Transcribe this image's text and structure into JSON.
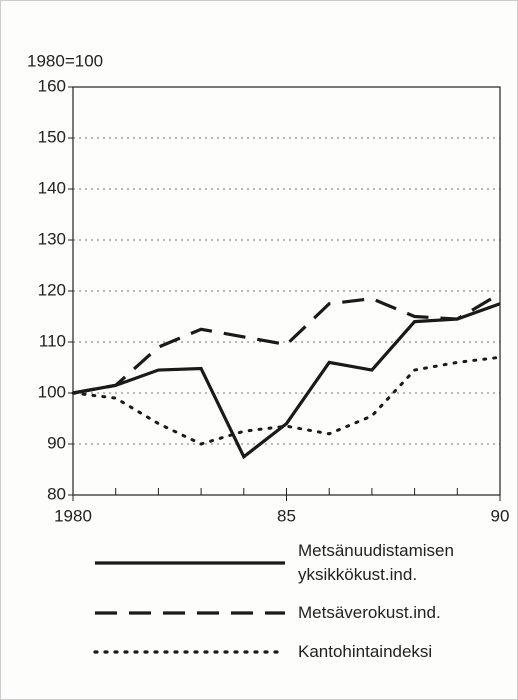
{
  "chart_data": {
    "type": "line",
    "y_label": "1980=100",
    "x": [
      1980,
      1981,
      1982,
      1983,
      1984,
      1985,
      1986,
      1987,
      1988,
      1989,
      1990
    ],
    "series": [
      {
        "name": "Metsänuudistamisen yksikkökust.ind.",
        "color": "#1a1a1a",
        "dash": "solid",
        "values": [
          100,
          101.5,
          104.5,
          104.8,
          87.5,
          94,
          106,
          104.5,
          114,
          114.5,
          117.5
        ]
      },
      {
        "name": "Metsäverokust.ind.",
        "color": "#1a1a1a",
        "dash": "dashed",
        "values": [
          100,
          101.5,
          109,
          112.5,
          111,
          109.5,
          117.5,
          118.5,
          115,
          114.5,
          119.5
        ]
      },
      {
        "name": "Kantohintaindeksi",
        "color": "#1a1a1a",
        "dash": "dotted",
        "values": [
          100,
          99,
          94,
          90,
          92.5,
          93.5,
          92,
          95.5,
          104.5,
          106,
          107
        ]
      }
    ],
    "xlim": [
      1980,
      1990
    ],
    "xticks": [
      {
        "value": 1980,
        "label": "1980"
      },
      {
        "value": 1985,
        "label": "85"
      },
      {
        "value": 1990,
        "label": "90"
      }
    ],
    "ylim": [
      80,
      160
    ],
    "yticks": [
      80,
      90,
      100,
      110,
      120,
      130,
      140,
      150,
      160
    ],
    "grid": true,
    "legend": "bottom"
  }
}
